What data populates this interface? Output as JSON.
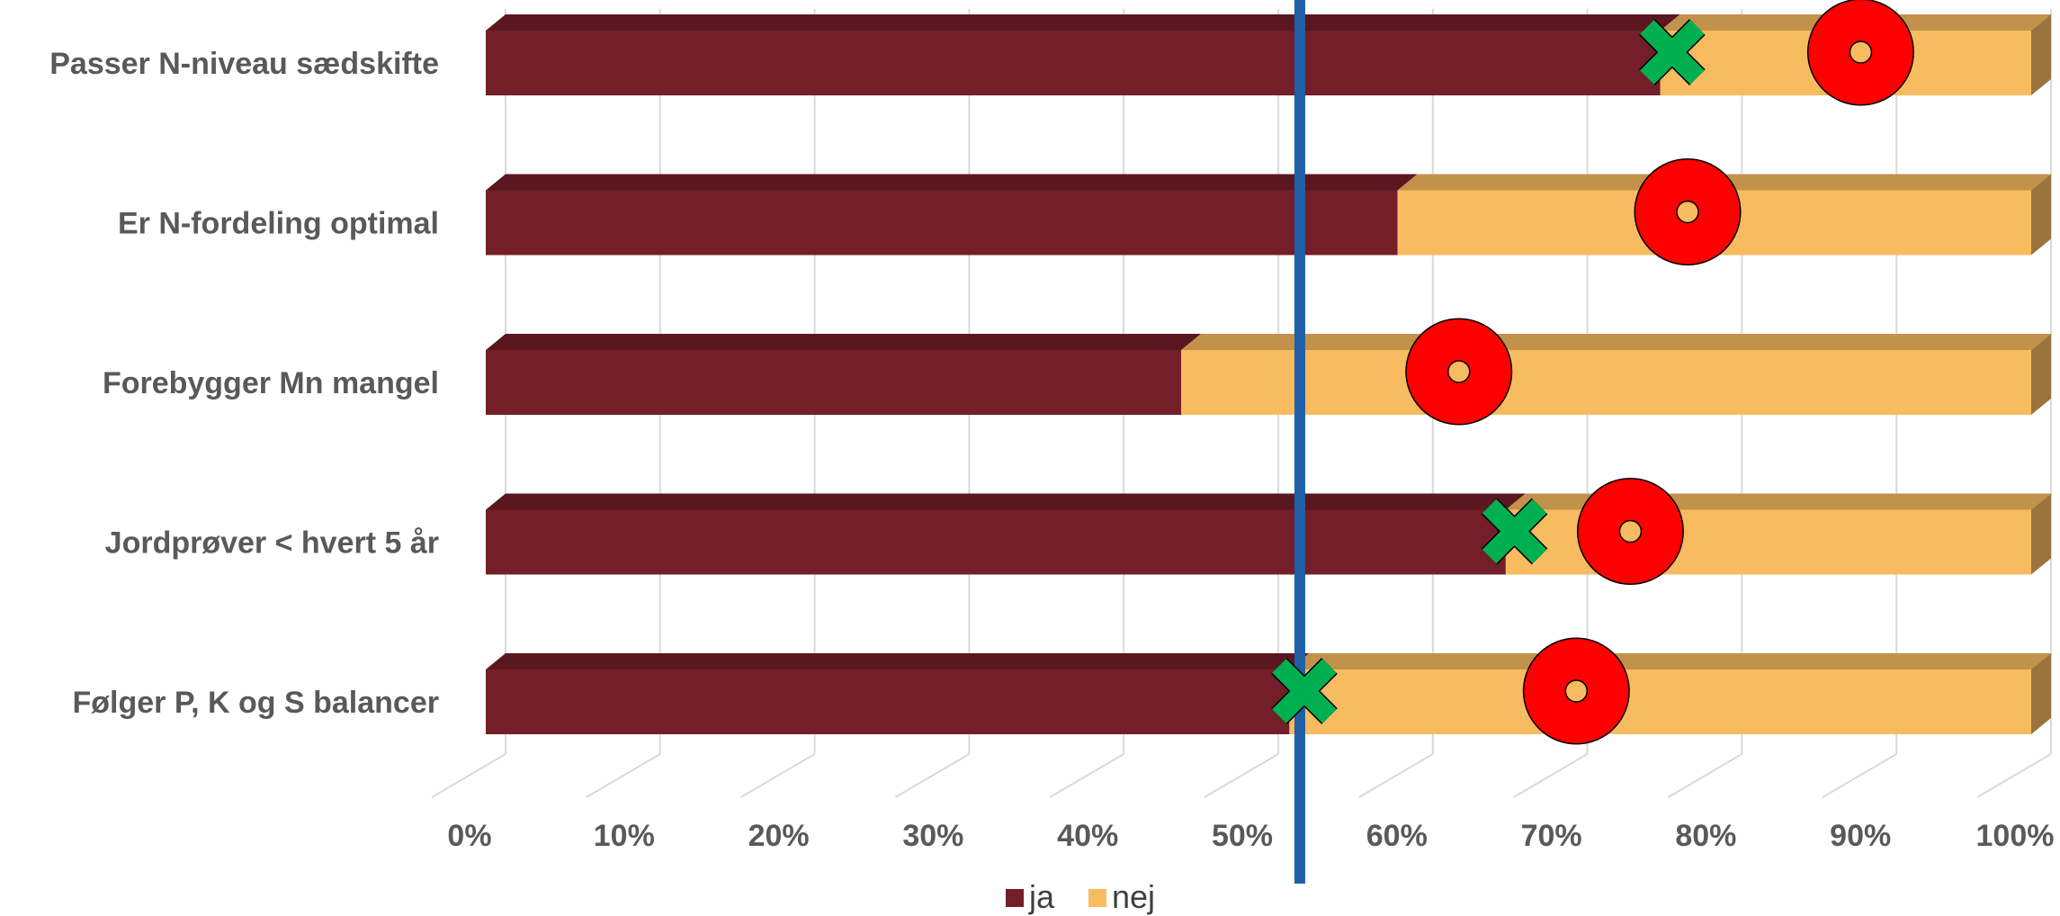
{
  "chart_data": {
    "type": "bar",
    "orientation": "horizontal",
    "stacked": "percent",
    "three_d": true,
    "categories": [
      "Passer N-niveau sædskifte",
      "Er N-fordeling optimal",
      "Forebygger Mn mangel",
      "Jordprøver < hvert 5 år",
      "Følger P, K og S balancer"
    ],
    "series": [
      {
        "name": "ja",
        "color": "#731E29",
        "values": [
          76,
          59,
          45,
          66,
          52
        ]
      },
      {
        "name": "nej",
        "color": "#F9BB60",
        "values": [
          24,
          41,
          55,
          34,
          48
        ]
      }
    ],
    "x_ticks": [
      "0%",
      "10%",
      "20%",
      "30%",
      "40%",
      "50%",
      "60%",
      "70%",
      "80%",
      "90%",
      "100%"
    ],
    "xlim": [
      0,
      100
    ],
    "grid": true,
    "legend_position": "bottom",
    "reference_line": {
      "value": 52.5,
      "color": "#1F5FA8"
    },
    "markers": [
      {
        "category": "Passer N-niveau sædskifte",
        "circle": 88.5,
        "cross": 76.3
      },
      {
        "category": "Er N-fordeling optimal",
        "circle": 77.3
      },
      {
        "category": "Forebygger Mn mangel",
        "circle": 62.5
      },
      {
        "category": "Jordprøver < hvert 5 år",
        "circle": 73.6,
        "cross": 66.1
      },
      {
        "category": "Følger P, K og S balancer",
        "circle": 70.1,
        "cross": 52.5
      }
    ],
    "marker_colors": {
      "circle": "#FF0000",
      "cross": "#00B050"
    }
  }
}
